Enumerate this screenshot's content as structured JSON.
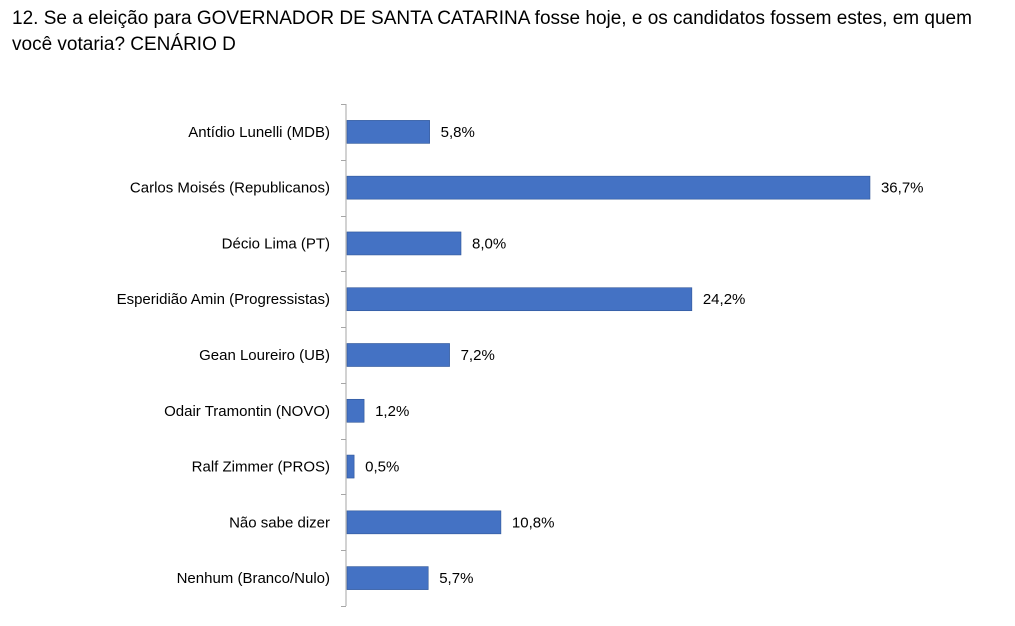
{
  "chart_data": {
    "type": "bar",
    "orientation": "horizontal",
    "title": "12. Se a eleição para GOVERNADOR DE SANTA CATARINA fosse hoje, e os candidatos fossem estes, em quem você votaria? CENÁRIO D",
    "categories": [
      "Antídio Lunelli (MDB)",
      "Carlos Moisés (Republicanos)",
      "Décio Lima (PT)",
      "Esperidião Amin (Progressistas)",
      "Gean Loureiro (UB)",
      "Odair Tramontin (NOVO)",
      "Ralf Zimmer (PROS)",
      "Não sabe dizer",
      "Nenhum (Branco/Nulo)"
    ],
    "values": [
      5.8,
      36.7,
      8.0,
      24.2,
      7.2,
      1.2,
      0.5,
      10.8,
      5.7
    ],
    "value_labels": [
      "5,8%",
      "36,7%",
      "8,0%",
      "24,2%",
      "7,2%",
      "1,2%",
      "0,5%",
      "10,8%",
      "5,7%"
    ],
    "xlim": [
      0,
      40
    ],
    "grid": false,
    "legend": "none",
    "colors": {
      "bar": "#4472C4",
      "bar_border": "#2F5597",
      "axis": "#A6A6A6"
    }
  }
}
